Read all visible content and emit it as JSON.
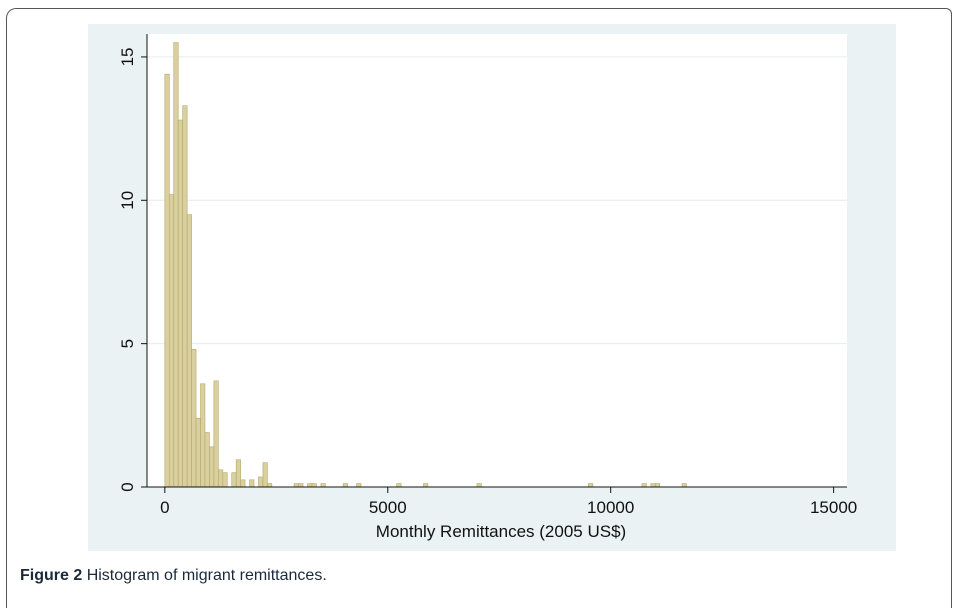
{
  "caption": {
    "label": "Figure 2",
    "text": "Histogram of migrant remittances."
  },
  "colors": {
    "outer_background": "#eaf2f3",
    "plot_background": "#ffffff",
    "bar_fill": "#d9cf9f",
    "bar_stroke": "#b5a86a",
    "gridline": "#e6ecee"
  },
  "chart_data": {
    "type": "bar",
    "xlabel": "Monthly Remittances (2005 US$)",
    "ylabel": "",
    "xlim": [
      -400,
      15300
    ],
    "ylim": [
      0,
      15.8
    ],
    "xticks": [
      0,
      5000,
      10000,
      15000
    ],
    "yticks": [
      0,
      5,
      10,
      15
    ],
    "grid": true,
    "bin_width": 100,
    "bins": [
      {
        "x": 0,
        "value": 14.4
      },
      {
        "x": 100,
        "value": 10.2
      },
      {
        "x": 200,
        "value": 15.5
      },
      {
        "x": 300,
        "value": 12.8
      },
      {
        "x": 400,
        "value": 13.3
      },
      {
        "x": 500,
        "value": 9.5
      },
      {
        "x": 600,
        "value": 4.8
      },
      {
        "x": 700,
        "value": 2.4
      },
      {
        "x": 800,
        "value": 3.6
      },
      {
        "x": 900,
        "value": 1.9
      },
      {
        "x": 1000,
        "value": 1.4
      },
      {
        "x": 1100,
        "value": 3.7
      },
      {
        "x": 1200,
        "value": 0.6
      },
      {
        "x": 1300,
        "value": 0.5
      },
      {
        "x": 1500,
        "value": 0.5
      },
      {
        "x": 1600,
        "value": 0.95
      },
      {
        "x": 1700,
        "value": 0.25
      },
      {
        "x": 1900,
        "value": 0.25
      },
      {
        "x": 2100,
        "value": 0.35
      },
      {
        "x": 2200,
        "value": 0.85
      },
      {
        "x": 2300,
        "value": 0.12
      },
      {
        "x": 2900,
        "value": 0.12
      },
      {
        "x": 3000,
        "value": 0.12
      },
      {
        "x": 3200,
        "value": 0.12
      },
      {
        "x": 3300,
        "value": 0.12
      },
      {
        "x": 3500,
        "value": 0.12
      },
      {
        "x": 4000,
        "value": 0.12
      },
      {
        "x": 4300,
        "value": 0.12
      },
      {
        "x": 5200,
        "value": 0.12
      },
      {
        "x": 5800,
        "value": 0.12
      },
      {
        "x": 7000,
        "value": 0.12
      },
      {
        "x": 9500,
        "value": 0.12
      },
      {
        "x": 10700,
        "value": 0.12
      },
      {
        "x": 10900,
        "value": 0.12
      },
      {
        "x": 11000,
        "value": 0.12
      },
      {
        "x": 11600,
        "value": 0.12
      }
    ]
  }
}
